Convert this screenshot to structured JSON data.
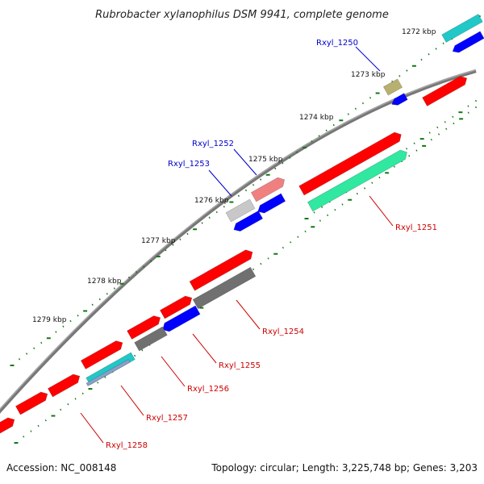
{
  "title": "Rubrobacter xylanophilus DSM 9941, complete genome",
  "footer": {
    "accession_label": "Accession:",
    "accession": "NC_008148",
    "topology_label": "Topology:",
    "topology": "circular",
    "length_label": "Length:",
    "length": "3,225,748 bp",
    "genes_label": "Genes:",
    "genes": "3,203"
  },
  "kbp_markers": [
    "1272 kbp",
    "1273 kbp",
    "1274 kbp",
    "1275 kbp",
    "1276 kbp",
    "1277 kbp",
    "1278 kbp",
    "1279 kbp"
  ],
  "gene_labels": [
    {
      "name": "Rxyl_1250",
      "color": "#0000cc"
    },
    {
      "name": "Rxyl_1251",
      "color": "#cc0000"
    },
    {
      "name": "Rxyl_1252",
      "color": "#0000cc"
    },
    {
      "name": "Rxyl_1253",
      "color": "#0000cc"
    },
    {
      "name": "Rxyl_1254",
      "color": "#cc0000"
    },
    {
      "name": "Rxyl_1255",
      "color": "#cc0000"
    },
    {
      "name": "Rxyl_1256",
      "color": "#cc0000"
    },
    {
      "name": "Rxyl_1257",
      "color": "#cc0000"
    },
    {
      "name": "Rxyl_1258",
      "color": "#cc0000"
    }
  ],
  "colors": {
    "backbone": "#777777",
    "forward_strand": "#ff0000",
    "reverse_strand": "#0000ff",
    "tick": "#117711",
    "cyan_feature": "#20c8c8",
    "mint_feature": "#30e8a0",
    "olive_feature": "#b8b070",
    "pink_feature": "#f08080",
    "lightgray_feature": "#c8c8c8",
    "darkgray_feature": "#707070"
  }
}
